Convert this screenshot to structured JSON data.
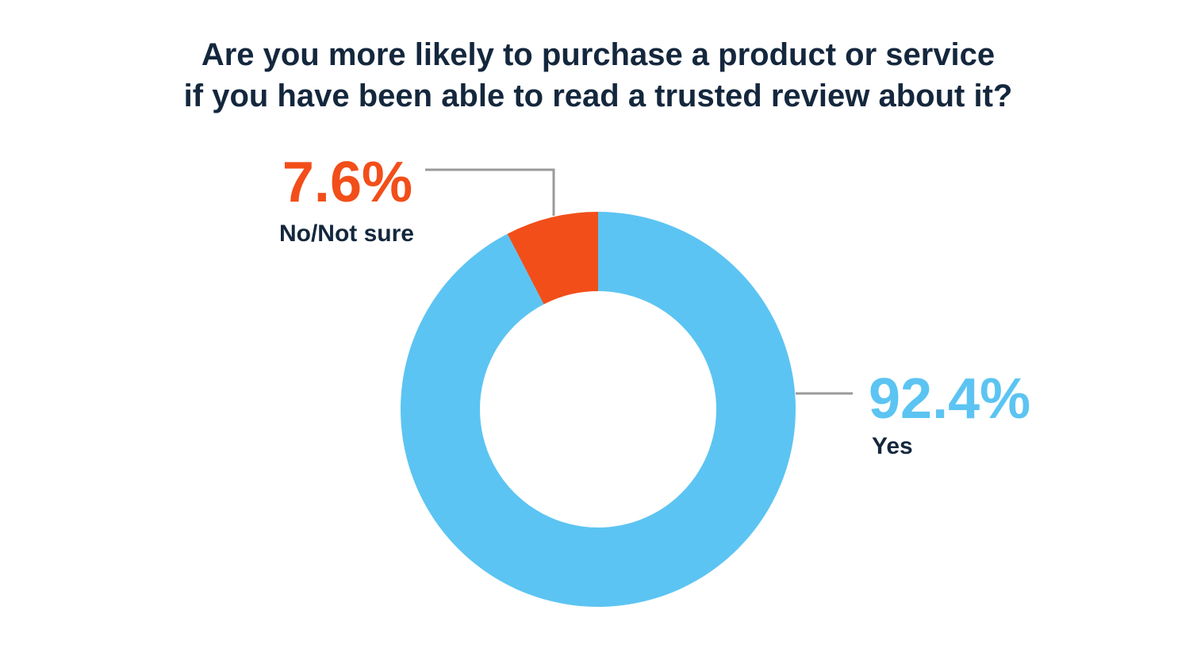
{
  "chart_data": {
    "type": "pie",
    "variant": "donut",
    "title": "Are you more likely to purchase a product or service if you have been able to read a trusted review about it?",
    "title_lines": [
      "Are you more likely to purchase a product or service",
      "if you have been able to read a trusted review about it?"
    ],
    "slices": [
      {
        "name": "No/Not sure",
        "value": 7.6,
        "label": "7.6%",
        "color": "#f24e1a"
      },
      {
        "name": "Yes",
        "value": 92.4,
        "label": "92.4%",
        "color": "#5cc4f2"
      }
    ],
    "legend": "none",
    "grid": false
  },
  "colors": {
    "background": "#ffffff",
    "title": "#14273d",
    "leader_line": "#9a9a9a"
  }
}
